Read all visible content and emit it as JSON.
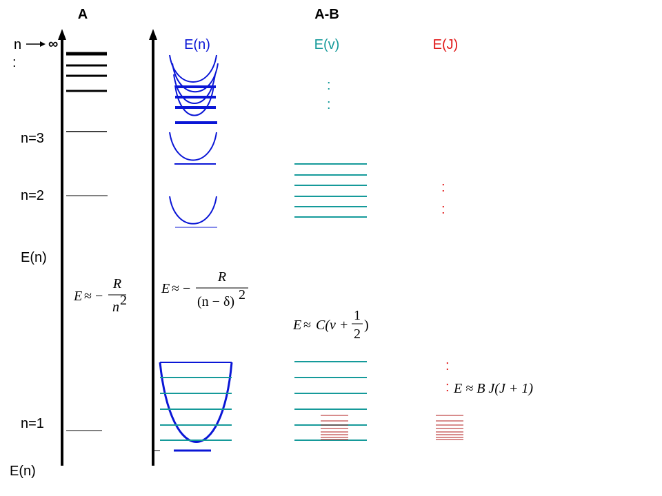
{
  "headers": {
    "atom": "A",
    "molecule": "A-B"
  },
  "column_labels": {
    "electronic": "E(n)",
    "vibrational": "E(v)",
    "rotational": "E(J)"
  },
  "atom_labels": {
    "n_symbol": "n",
    "infinity": "∞",
    "colon": ":",
    "n3": "n=3",
    "n2": "n=2",
    "n1": "n=1",
    "axis_mid": "E(n)",
    "axis_bottom": "E(n)"
  },
  "ellipsis": ":",
  "formulas": {
    "atom": {
      "lhs": "E",
      "approx": "≈ −",
      "num": "R",
      "den": "n",
      "den_power": "2"
    },
    "molecule_electronic": {
      "lhs": "E",
      "approx": "≈ −",
      "num": "R",
      "den": "(n − δ)",
      "den_power": "2"
    },
    "vibrational": {
      "lhs": "E",
      "approx": "≈",
      "body": "C(v +",
      "num": "1",
      "den": "2",
      "close": ")"
    },
    "rotational": {
      "text": "E ≈ B J(J + 1)"
    }
  },
  "colors": {
    "axis": "#000000",
    "electronic": "#0a16d6",
    "vibrational": "#159a9a",
    "rotational": "#e11616",
    "rotational_lines": "#b01818",
    "text": "#000000"
  }
}
